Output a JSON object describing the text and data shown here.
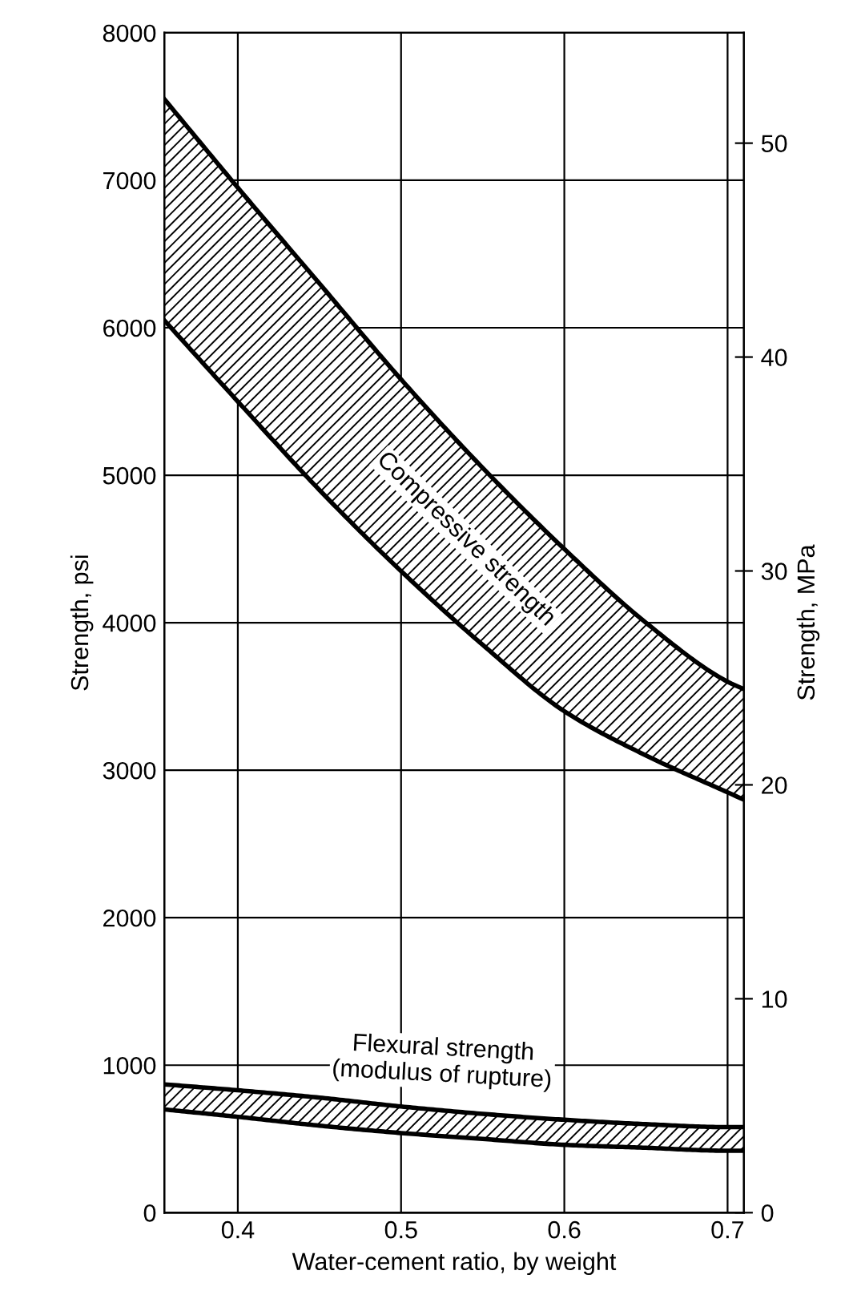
{
  "chart_data": {
    "type": "line",
    "xlabel": "Water-cement ratio, by weight",
    "ylabel": "Strength, psi",
    "y2label": "Strength, MPa",
    "x": [
      0.355,
      0.4,
      0.45,
      0.5,
      0.55,
      0.6,
      0.65,
      0.7,
      0.71
    ],
    "series": [
      {
        "name": "Compressive strength",
        "color": "#000000",
        "values": [
          7550,
          6950,
          6300,
          5650,
          5050,
          4500,
          4000,
          3600,
          3550
        ],
        "lower": [
          6050,
          5500,
          4900,
          4350,
          3850,
          3400,
          3100,
          2850,
          2800
        ],
        "upper": [
          7550,
          6950,
          6300,
          5650,
          5050,
          4500,
          4000,
          3600,
          3550
        ]
      },
      {
        "color": "#000000",
        "values": [
          6050,
          5500,
          4900,
          4350,
          3850,
          3400,
          3100,
          2850,
          2800
        ]
      },
      {
        "name": "Flexural strength\n(modulus of rupture)",
        "color": "#000000",
        "values": [
          870,
          830,
          780,
          720,
          670,
          630,
          600,
          580,
          580
        ],
        "lower": [
          700,
          650,
          590,
          540,
          500,
          460,
          440,
          420,
          420
        ],
        "upper": [
          870,
          830,
          780,
          720,
          670,
          630,
          600,
          580,
          580
        ]
      },
      {
        "color": "#000000",
        "values": [
          700,
          650,
          590,
          540,
          500,
          460,
          440,
          420,
          420
        ]
      }
    ],
    "xlim": [
      0.355,
      0.71
    ],
    "ylim": [
      0,
      8000
    ],
    "xticks": [
      0.4,
      0.5,
      0.6,
      0.7
    ],
    "yticks": [
      0,
      1000,
      2000,
      3000,
      4000,
      5000,
      6000,
      7000,
      8000
    ],
    "y2lim": [
      0,
      55.16
    ],
    "y2ticks": [
      0,
      10,
      20,
      30,
      40,
      50
    ],
    "grid": true,
    "legend": false
  }
}
